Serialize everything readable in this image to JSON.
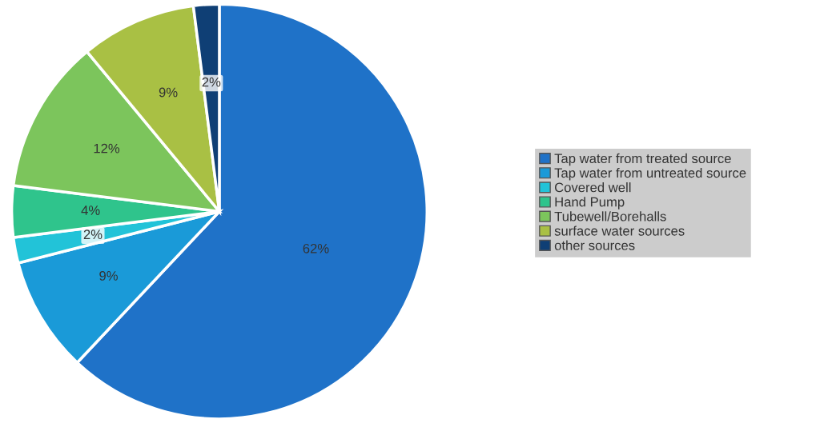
{
  "chart_data": {
    "type": "pie",
    "categories": [
      "Tap water from treated source",
      "Tap water from untreated source",
      "Covered well",
      "Hand Pump",
      "Tubewell/Borehalls",
      "surface water sources",
      "other sources"
    ],
    "values": [
      62,
      9,
      2,
      4,
      12,
      9,
      2
    ],
    "value_labels": [
      "62%",
      "9%",
      "2%",
      "4%",
      "12%",
      "9%",
      "2%"
    ],
    "colors": [
      "#1f72c8",
      "#1a9ad8",
      "#22c3d8",
      "#2fc48c",
      "#7cc55c",
      "#a9c044",
      "#0f3f75"
    ],
    "legend": "right"
  }
}
